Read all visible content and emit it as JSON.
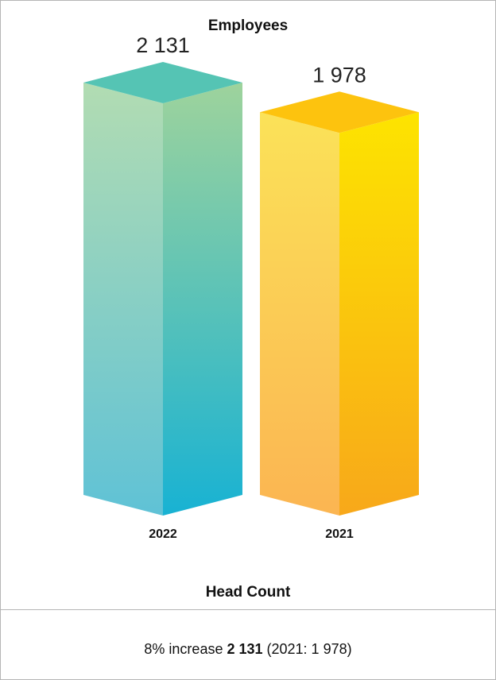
{
  "chart_data": {
    "type": "bar",
    "title": "Employees",
    "categories": [
      "2022",
      "2021"
    ],
    "values": [
      2131,
      1978
    ],
    "value_labels": [
      "2 131",
      "1 978"
    ],
    "xlabel": "Head Count",
    "ylabel": "",
    "colors": {
      "2022": {
        "top": "#55c4b4",
        "front_top": "#b2dcb2",
        "front_bottom": "#5fc2d6",
        "side_top": "#9ed39c",
        "side_bottom": "#18b2d3"
      },
      "2021": {
        "top": "#fdc30e",
        "front_top": "#fbe258",
        "front_bottom": "#fbb552",
        "side_top": "#fde400",
        "side_bottom": "#f8a81a"
      }
    }
  },
  "summary": {
    "prefix": "8% increase ",
    "value": "2 131",
    "suffix": " (2021: 1 978)"
  }
}
